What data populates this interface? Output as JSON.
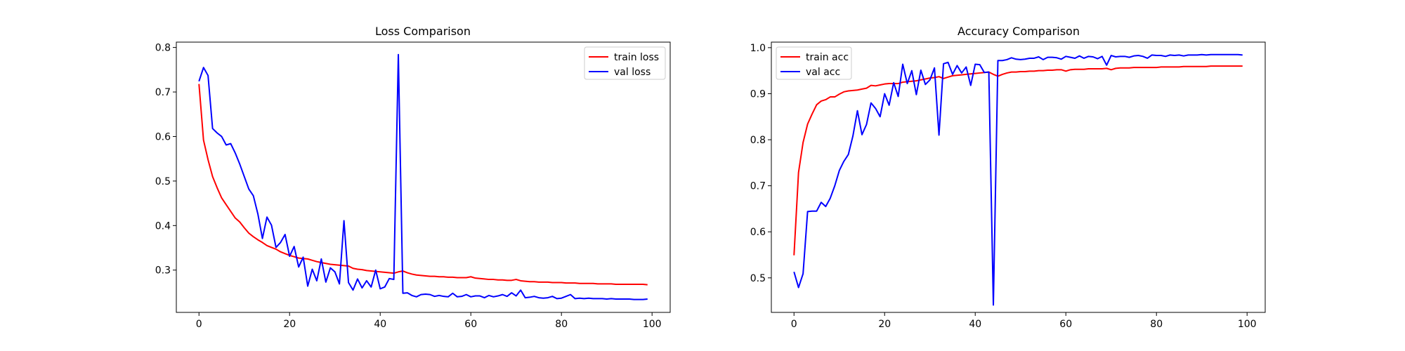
{
  "colors": {
    "train": "#ff0000",
    "val": "#0000ff",
    "axes": "#000000",
    "background": "#ffffff"
  },
  "chart_data": [
    {
      "type": "line",
      "title": "Loss Comparison",
      "xlabel": "",
      "ylabel": "",
      "xlim": [
        -5,
        104
      ],
      "ylim": [
        0.205,
        0.812
      ],
      "xticks": [
        0,
        20,
        40,
        60,
        80,
        100
      ],
      "yticks": [
        0.3,
        0.4,
        0.5,
        0.6,
        0.7,
        0.8
      ],
      "ytick_labels": [
        "0.3",
        "0.4",
        "0.5",
        "0.6",
        "0.7",
        "0.8"
      ],
      "grid": false,
      "legend_position": "upper right",
      "x": [
        0,
        1,
        2,
        3,
        4,
        5,
        6,
        7,
        8,
        9,
        10,
        11,
        12,
        13,
        14,
        15,
        16,
        17,
        18,
        19,
        20,
        21,
        22,
        23,
        24,
        25,
        26,
        27,
        28,
        29,
        30,
        31,
        32,
        33,
        34,
        35,
        36,
        37,
        38,
        39,
        40,
        41,
        42,
        43,
        44,
        45,
        46,
        47,
        48,
        49,
        50,
        51,
        52,
        53,
        54,
        55,
        56,
        57,
        58,
        59,
        60,
        61,
        62,
        63,
        64,
        65,
        66,
        67,
        68,
        69,
        70,
        71,
        72,
        73,
        74,
        75,
        76,
        77,
        78,
        79,
        80,
        81,
        82,
        83,
        84,
        85,
        86,
        87,
        88,
        89,
        90,
        91,
        92,
        93,
        94,
        95,
        96,
        97,
        98,
        99
      ],
      "series": [
        {
          "name": "train loss",
          "color_key": "train",
          "values": [
            0.718,
            0.592,
            0.548,
            0.51,
            0.485,
            0.462,
            0.447,
            0.432,
            0.417,
            0.408,
            0.395,
            0.383,
            0.375,
            0.368,
            0.362,
            0.355,
            0.351,
            0.347,
            0.341,
            0.337,
            0.333,
            0.33,
            0.327,
            0.326,
            0.325,
            0.322,
            0.319,
            0.317,
            0.315,
            0.313,
            0.312,
            0.311,
            0.31,
            0.309,
            0.304,
            0.302,
            0.301,
            0.299,
            0.298,
            0.297,
            0.296,
            0.295,
            0.294,
            0.293,
            0.296,
            0.298,
            0.294,
            0.291,
            0.289,
            0.288,
            0.287,
            0.286,
            0.286,
            0.285,
            0.285,
            0.284,
            0.284,
            0.283,
            0.283,
            0.283,
            0.285,
            0.282,
            0.281,
            0.28,
            0.279,
            0.279,
            0.278,
            0.278,
            0.277,
            0.277,
            0.279,
            0.276,
            0.275,
            0.274,
            0.274,
            0.273,
            0.273,
            0.273,
            0.272,
            0.272,
            0.272,
            0.271,
            0.271,
            0.271,
            0.27,
            0.27,
            0.27,
            0.27,
            0.269,
            0.269,
            0.269,
            0.269,
            0.268,
            0.268,
            0.268,
            0.268,
            0.268,
            0.268,
            0.268,
            0.267
          ]
        },
        {
          "name": "val loss",
          "color_key": "val",
          "values": [
            0.724,
            0.755,
            0.737,
            0.618,
            0.608,
            0.6,
            0.581,
            0.584,
            0.563,
            0.538,
            0.51,
            0.482,
            0.467,
            0.426,
            0.371,
            0.419,
            0.401,
            0.351,
            0.362,
            0.38,
            0.331,
            0.353,
            0.307,
            0.329,
            0.264,
            0.302,
            0.276,
            0.325,
            0.273,
            0.305,
            0.296,
            0.269,
            0.411,
            0.272,
            0.255,
            0.28,
            0.26,
            0.276,
            0.262,
            0.3,
            0.258,
            0.262,
            0.281,
            0.279,
            0.784,
            0.248,
            0.249,
            0.243,
            0.24,
            0.245,
            0.246,
            0.245,
            0.241,
            0.243,
            0.241,
            0.24,
            0.248,
            0.24,
            0.241,
            0.245,
            0.24,
            0.242,
            0.242,
            0.238,
            0.243,
            0.24,
            0.242,
            0.245,
            0.241,
            0.249,
            0.242,
            0.255,
            0.238,
            0.239,
            0.241,
            0.238,
            0.237,
            0.238,
            0.241,
            0.236,
            0.237,
            0.241,
            0.245,
            0.236,
            0.237,
            0.236,
            0.237,
            0.236,
            0.236,
            0.236,
            0.235,
            0.236,
            0.235,
            0.235,
            0.235,
            0.235,
            0.234,
            0.234,
            0.234,
            0.235
          ]
        }
      ]
    },
    {
      "type": "line",
      "title": "Accuracy Comparison",
      "xlabel": "",
      "ylabel": "",
      "xlim": [
        -5,
        104
      ],
      "ylim": [
        0.425,
        1.012
      ],
      "xticks": [
        0,
        20,
        40,
        60,
        80,
        100
      ],
      "yticks": [
        0.5,
        0.6,
        0.7,
        0.8,
        0.9,
        1.0
      ],
      "ytick_labels": [
        "0.5",
        "0.6",
        "0.7",
        "0.8",
        "0.9",
        "1.0"
      ],
      "grid": false,
      "legend_position": "upper left",
      "x": [
        0,
        1,
        2,
        3,
        4,
        5,
        6,
        7,
        8,
        9,
        10,
        11,
        12,
        13,
        14,
        15,
        16,
        17,
        18,
        19,
        20,
        21,
        22,
        23,
        24,
        25,
        26,
        27,
        28,
        29,
        30,
        31,
        32,
        33,
        34,
        35,
        36,
        37,
        38,
        39,
        40,
        41,
        42,
        43,
        44,
        45,
        46,
        47,
        48,
        49,
        50,
        51,
        52,
        53,
        54,
        55,
        56,
        57,
        58,
        59,
        60,
        61,
        62,
        63,
        64,
        65,
        66,
        67,
        68,
        69,
        70,
        71,
        72,
        73,
        74,
        75,
        76,
        77,
        78,
        79,
        80,
        81,
        82,
        83,
        84,
        85,
        86,
        87,
        88,
        89,
        90,
        91,
        92,
        93,
        94,
        95,
        96,
        97,
        98,
        99
      ],
      "series": [
        {
          "name": "train acc",
          "color_key": "train",
          "values": [
            0.549,
            0.729,
            0.794,
            0.834,
            0.856,
            0.876,
            0.884,
            0.887,
            0.893,
            0.893,
            0.899,
            0.904,
            0.906,
            0.907,
            0.908,
            0.91,
            0.912,
            0.918,
            0.917,
            0.919,
            0.921,
            0.922,
            0.922,
            0.922,
            0.925,
            0.926,
            0.927,
            0.928,
            0.93,
            0.932,
            0.934,
            0.935,
            0.937,
            0.933,
            0.936,
            0.939,
            0.94,
            0.941,
            0.942,
            0.943,
            0.944,
            0.945,
            0.946,
            0.947,
            0.942,
            0.938,
            0.942,
            0.945,
            0.947,
            0.947,
            0.948,
            0.948,
            0.949,
            0.949,
            0.95,
            0.95,
            0.951,
            0.951,
            0.952,
            0.952,
            0.949,
            0.952,
            0.953,
            0.953,
            0.953,
            0.954,
            0.954,
            0.954,
            0.954,
            0.955,
            0.952,
            0.955,
            0.956,
            0.956,
            0.956,
            0.957,
            0.957,
            0.957,
            0.957,
            0.957,
            0.957,
            0.958,
            0.958,
            0.958,
            0.958,
            0.958,
            0.959,
            0.959,
            0.959,
            0.959,
            0.959,
            0.959,
            0.96,
            0.96,
            0.96,
            0.96,
            0.96,
            0.96,
            0.96,
            0.96
          ]
        },
        {
          "name": "val acc",
          "color_key": "val",
          "values": [
            0.513,
            0.479,
            0.509,
            0.644,
            0.645,
            0.645,
            0.664,
            0.655,
            0.673,
            0.7,
            0.733,
            0.753,
            0.768,
            0.808,
            0.863,
            0.811,
            0.833,
            0.88,
            0.868,
            0.85,
            0.9,
            0.875,
            0.924,
            0.894,
            0.964,
            0.922,
            0.95,
            0.898,
            0.951,
            0.92,
            0.93,
            0.956,
            0.81,
            0.965,
            0.968,
            0.942,
            0.961,
            0.945,
            0.958,
            0.918,
            0.964,
            0.963,
            0.946,
            0.947,
            0.441,
            0.972,
            0.972,
            0.974,
            0.978,
            0.975,
            0.974,
            0.975,
            0.977,
            0.977,
            0.98,
            0.974,
            0.979,
            0.979,
            0.978,
            0.975,
            0.981,
            0.979,
            0.977,
            0.982,
            0.977,
            0.981,
            0.98,
            0.976,
            0.981,
            0.962,
            0.983,
            0.98,
            0.981,
            0.981,
            0.979,
            0.982,
            0.983,
            0.981,
            0.977,
            0.984,
            0.983,
            0.983,
            0.981,
            0.984,
            0.983,
            0.984,
            0.982,
            0.984,
            0.984,
            0.984,
            0.985,
            0.984,
            0.985,
            0.985,
            0.985,
            0.985,
            0.985,
            0.985,
            0.985,
            0.984
          ]
        }
      ]
    }
  ]
}
